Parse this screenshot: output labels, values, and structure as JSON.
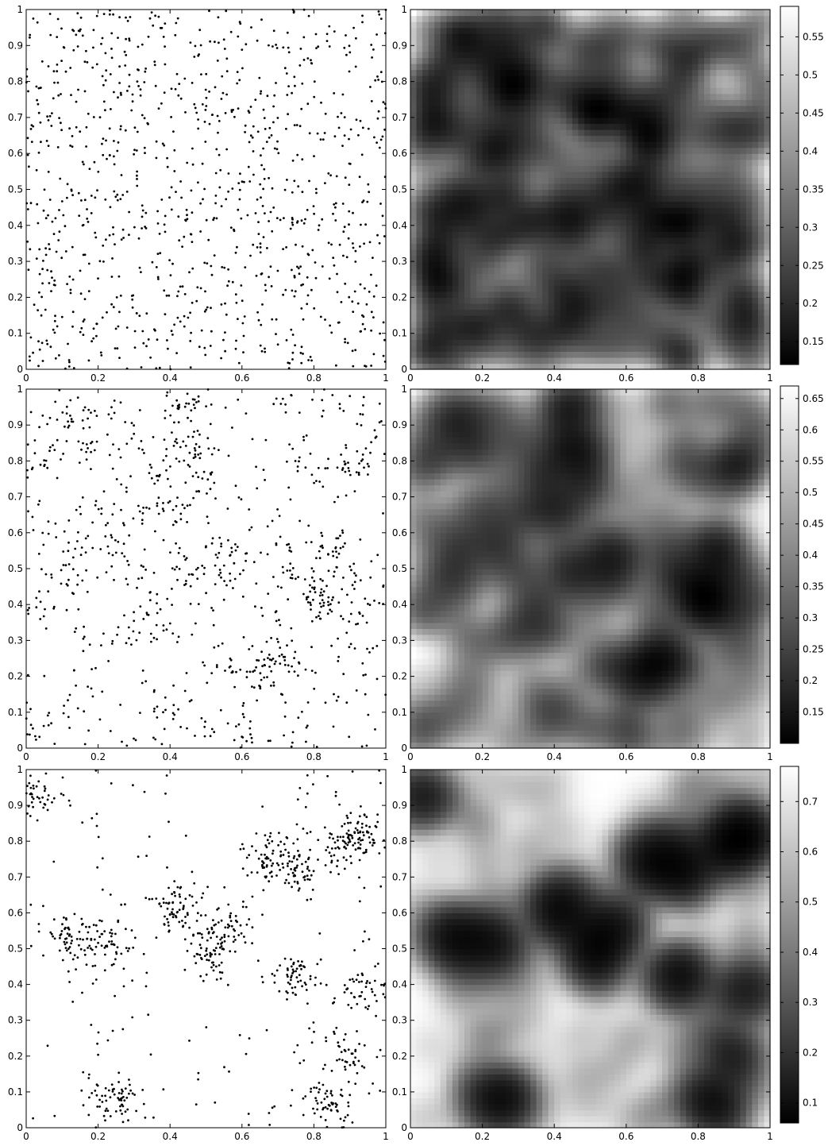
{
  "chart_data": [
    {
      "type": "scatter",
      "panel": "row1-left",
      "xlim": [
        0,
        1
      ],
      "ylim": [
        0,
        1
      ],
      "xticks": [
        "0",
        "0.2",
        "0.4",
        "0.6",
        "0.8",
        "1"
      ],
      "yticks": [
        "0",
        "0.1",
        "0.2",
        "0.3",
        "0.4",
        "0.5",
        "0.6",
        "0.7",
        "0.8",
        "0.9",
        "1"
      ],
      "distribution": "approximately uniform",
      "approx_point_count": 1000,
      "marker_color": "#000000",
      "grid": false
    },
    {
      "type": "heatmap",
      "panel": "row1-right",
      "xlim": [
        0,
        1
      ],
      "ylim": [
        0,
        1
      ],
      "xticks": [
        "0",
        "0.2",
        "0.4",
        "0.6",
        "0.8",
        "1"
      ],
      "yticks": [
        "0",
        "0.1",
        "0.2",
        "0.3",
        "0.4",
        "0.5",
        "0.6",
        "0.7",
        "0.8",
        "0.9",
        "1"
      ],
      "colormap": "gray",
      "colorbar": {
        "range": [
          0.12,
          0.59
        ],
        "ticks": [
          "0.15",
          "0.2",
          "0.25",
          "0.3",
          "0.35",
          "0.4",
          "0.45",
          "0.5",
          "0.55"
        ]
      },
      "description_values": {
        "interior": 0.17,
        "edge": 0.5,
        "corner": 0.58
      }
    },
    {
      "type": "scatter",
      "panel": "row2-left",
      "xlim": [
        0,
        1
      ],
      "ylim": [
        0,
        1
      ],
      "xticks": [
        "0",
        "0.2",
        "0.4",
        "0.6",
        "0.8",
        "1"
      ],
      "yticks": [
        "0",
        "0.1",
        "0.2",
        "0.3",
        "0.4",
        "0.5",
        "0.6",
        "0.7",
        "0.8",
        "0.9",
        "1"
      ],
      "distribution": "mildly clustered",
      "approx_point_count": 1000,
      "marker_color": "#000000",
      "grid": false
    },
    {
      "type": "heatmap",
      "panel": "row2-right",
      "xlim": [
        0,
        1
      ],
      "ylim": [
        0,
        1
      ],
      "xticks": [
        "0",
        "0.2",
        "0.4",
        "0.6",
        "0.8",
        "1"
      ],
      "yticks": [
        "0",
        "0.1",
        "0.2",
        "0.3",
        "0.4",
        "0.5",
        "0.6",
        "0.7",
        "0.8",
        "0.9",
        "1"
      ],
      "colormap": "gray",
      "colorbar": {
        "range": [
          0.1,
          0.67
        ],
        "ticks": [
          "0.15",
          "0.2",
          "0.25",
          "0.3",
          "0.35",
          "0.4",
          "0.45",
          "0.5",
          "0.55",
          "0.6",
          "0.65"
        ]
      }
    },
    {
      "type": "scatter",
      "panel": "row3-left",
      "xlim": [
        0,
        1
      ],
      "ylim": [
        0,
        1
      ],
      "xticks": [
        "0",
        "0.2",
        "0.4",
        "0.6",
        "0.8",
        "1"
      ],
      "yticks": [
        "0",
        "0.1",
        "0.2",
        "0.3",
        "0.4",
        "0.5",
        "0.6",
        "0.7",
        "0.8",
        "0.9",
        "1"
      ],
      "distribution": "strongly clustered",
      "approx_point_count": 1000,
      "clusters": [
        {
          "x": 0.02,
          "y": 0.92
        },
        {
          "x": 0.12,
          "y": 0.52
        },
        {
          "x": 0.22,
          "y": 0.52
        },
        {
          "x": 0.25,
          "y": 0.08
        },
        {
          "x": 0.42,
          "y": 0.62
        },
        {
          "x": 0.57,
          "y": 0.55
        },
        {
          "x": 0.5,
          "y": 0.48
        },
        {
          "x": 0.68,
          "y": 0.76
        },
        {
          "x": 0.75,
          "y": 0.72
        },
        {
          "x": 0.88,
          "y": 0.8
        },
        {
          "x": 0.94,
          "y": 0.82
        },
        {
          "x": 0.75,
          "y": 0.42
        },
        {
          "x": 0.94,
          "y": 0.38
        },
        {
          "x": 0.9,
          "y": 0.2
        },
        {
          "x": 0.83,
          "y": 0.08
        }
      ],
      "marker_color": "#000000",
      "grid": false
    },
    {
      "type": "heatmap",
      "panel": "row3-right",
      "xlim": [
        0,
        1
      ],
      "ylim": [
        0,
        1
      ],
      "xticks": [
        "0",
        "0.2",
        "0.4",
        "0.6",
        "0.8",
        "1"
      ],
      "yticks": [
        "0",
        "0.1",
        "0.2",
        "0.3",
        "0.4",
        "0.5",
        "0.6",
        "0.7",
        "0.8",
        "0.9",
        "1"
      ],
      "colormap": "gray",
      "colorbar": {
        "range": [
          0.06,
          0.77
        ],
        "ticks": [
          "0.1",
          "0.2",
          "0.3",
          "0.4",
          "0.5",
          "0.6",
          "0.7"
        ]
      }
    }
  ]
}
